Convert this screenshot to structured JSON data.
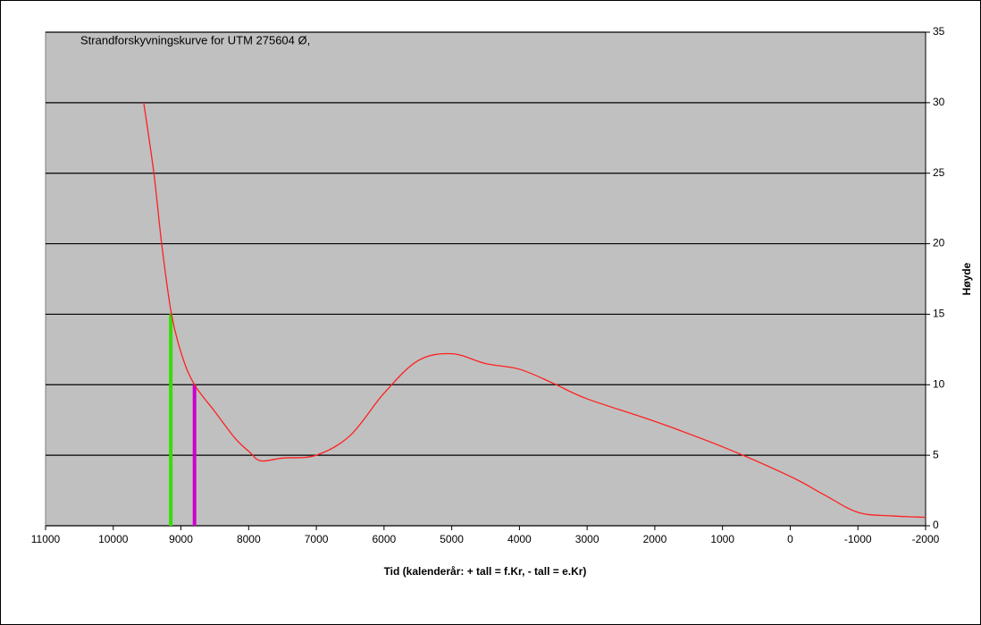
{
  "chart_data": {
    "type": "line",
    "title": "Strandforskyvningskurve  for UTM  275604  Ø,",
    "x_label": "Tid (kalenderår:  + tall = f.Kr, - tall = e.Kr)",
    "y_label": "Høyde",
    "x": [
      9550,
      9400,
      9285,
      9140,
      8980,
      8800,
      8500,
      8200,
      7980,
      7820,
      7500,
      7000,
      6500,
      6000,
      5500,
      5000,
      4500,
      4000,
      3500,
      3000,
      2000,
      1000,
      0,
      -500,
      -1000,
      -1500,
      -2000
    ],
    "series": [
      {
        "name": "Strandforskyvningskurve",
        "color": "#ff2020",
        "values": [
          30,
          25,
          20,
          15,
          12,
          10,
          8.1,
          6.2,
          5.2,
          4.6,
          4.8,
          5.0,
          6.4,
          9.4,
          11.7,
          12.2,
          11.5,
          11.1,
          10.1,
          9.0,
          7.4,
          5.6,
          3.5,
          2.2,
          0.95,
          0.7,
          0.6
        ]
      }
    ],
    "markers": [
      {
        "x": 9150,
        "value": 15,
        "color": "#33dd00"
      },
      {
        "x": 8800,
        "value": 10,
        "color": "#cc00cc"
      }
    ],
    "xlim": [
      11000,
      -2000
    ],
    "xticks": [
      11000,
      10000,
      9000,
      8000,
      7000,
      6000,
      5000,
      4000,
      3000,
      2000,
      1000,
      0,
      -1000,
      -2000
    ],
    "ylim": [
      0,
      35
    ],
    "yticks": [
      0,
      5,
      10,
      15,
      20,
      25,
      30,
      35
    ],
    "grid": true,
    "y_axis_side": "right",
    "plot_background": "#c0c0c0"
  }
}
